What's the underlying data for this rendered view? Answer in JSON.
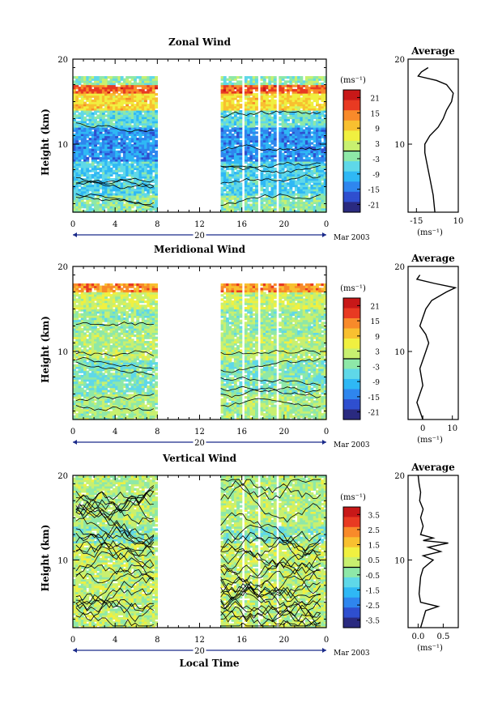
{
  "palette": [
    "#2a2a80",
    "#2f4fcf",
    "#2f86ee",
    "#2fb8f5",
    "#5fd8e8",
    "#8ee8a8",
    "#c8f070",
    "#f0f040",
    "#f8c030",
    "#f88a2a",
    "#e83a22",
    "#c81818"
  ],
  "date_label": "Mar 2003",
  "day_label": "20",
  "xlabel": "Local Time",
  "ylabel": "Height (km)",
  "cbar_unit": "(ms⁻¹)",
  "profile_unit": "(ms⁻¹)",
  "profile_title": "Average",
  "chart_data": [
    {
      "type": "heatmap",
      "title": "Zonal Wind",
      "xlabel": "Local Time",
      "ylabel": "Height (km)",
      "x_ticks": [
        "0",
        "4",
        "8",
        "12",
        "16",
        "20",
        "0"
      ],
      "y_ticks": [
        "10",
        "20"
      ],
      "xlim": [
        0,
        24
      ],
      "ylim": [
        2,
        20
      ],
      "data_gaps_hours": [
        [
          8,
          13.8
        ]
      ],
      "colorbar": {
        "unit": "(ms⁻¹)",
        "ticks": [
          "21",
          "15",
          "9",
          "3",
          "-3",
          "-9",
          "-15",
          "-21"
        ],
        "range": [
          -24,
          24
        ]
      },
      "regimes": [
        {
          "h_from": 2,
          "h_to": 4,
          "value": -2
        },
        {
          "h_from": 4,
          "h_to": 8,
          "value": -7
        },
        {
          "h_from": 8,
          "h_to": 12,
          "value": -13
        },
        {
          "h_from": 12,
          "h_to": 14,
          "value": -5
        },
        {
          "h_from": 14,
          "h_to": 16,
          "value": 8
        },
        {
          "h_from": 16,
          "h_to": 17,
          "value": 16
        },
        {
          "h_from": 17,
          "h_to": 18,
          "value": -2
        }
      ],
      "profile": {
        "title": "Average",
        "unit": "(ms⁻¹)",
        "xlim": [
          -20,
          10
        ],
        "x_ticks": [
          "-15",
          "10"
        ],
        "y_ticks": [
          "10",
          "20"
        ],
        "heights": [
          2,
          4,
          6,
          8,
          9,
          10,
          11,
          12,
          13,
          14,
          15,
          16,
          17,
          17.5,
          18,
          18.5,
          19
        ],
        "values": [
          -4,
          -5,
          -7,
          -9,
          -10,
          -10,
          -7,
          -2,
          1,
          3,
          6,
          7,
          3,
          -3,
          -14,
          -12,
          -8
        ]
      }
    },
    {
      "type": "heatmap",
      "title": "Meridional Wind",
      "xlabel": "Local Time",
      "ylabel": "Height (km)",
      "x_ticks": [
        "0",
        "4",
        "8",
        "12",
        "16",
        "20",
        "0"
      ],
      "y_ticks": [
        "10",
        "20"
      ],
      "xlim": [
        0,
        24
      ],
      "ylim": [
        2,
        20
      ],
      "data_gaps_hours": [
        [
          8,
          13.8
        ]
      ],
      "colorbar": {
        "unit": "(ms⁻¹)",
        "ticks": [
          "21",
          "15",
          "9",
          "3",
          "-3",
          "-9",
          "-15",
          "-21"
        ],
        "range": [
          -24,
          24
        ]
      },
      "regimes": [
        {
          "h_from": 2,
          "h_to": 5,
          "value": 0
        },
        {
          "h_from": 5,
          "h_to": 9,
          "value": -3
        },
        {
          "h_from": 9,
          "h_to": 12,
          "value": 1
        },
        {
          "h_from": 12,
          "h_to": 15,
          "value": -1
        },
        {
          "h_from": 15,
          "h_to": 17,
          "value": 3
        },
        {
          "h_from": 17,
          "h_to": 18,
          "value": 13
        }
      ],
      "profile": {
        "title": "Average",
        "unit": "(ms⁻¹)",
        "xlim": [
          -5,
          12
        ],
        "x_ticks": [
          "0",
          "10"
        ],
        "y_ticks": [
          "10",
          "20"
        ],
        "heights": [
          2,
          3,
          4,
          6,
          8,
          10,
          11,
          12,
          13,
          14,
          15,
          16,
          17,
          17.5,
          18,
          18.5,
          19
        ],
        "values": [
          0,
          -1,
          -2,
          0,
          -1,
          1,
          2,
          1,
          -1,
          0,
          1,
          3,
          8,
          11,
          4,
          -2,
          -1
        ]
      }
    },
    {
      "type": "heatmap",
      "title": "Vertical Wind",
      "xlabel": "Local Time",
      "ylabel": "Height (km)",
      "x_ticks": [
        "0",
        "4",
        "8",
        "12",
        "16",
        "20",
        "0"
      ],
      "y_ticks": [
        "10",
        "20"
      ],
      "xlim": [
        0,
        24
      ],
      "ylim": [
        2,
        20
      ],
      "data_gaps_hours": [
        [
          8,
          13.8
        ]
      ],
      "colorbar": {
        "unit": "(ms⁻¹)",
        "ticks": [
          "3.5",
          "2.5",
          "1.5",
          "0.5",
          "-0.5",
          "-1.5",
          "-2.5",
          "-3.5"
        ],
        "range": [
          -4,
          4
        ]
      },
      "regimes": [
        {
          "h_from": 2,
          "h_to": 12,
          "value": 0.3
        },
        {
          "h_from": 12,
          "h_to": 14,
          "value": -0.4
        },
        {
          "h_from": 14,
          "h_to": 20,
          "value": 0.1
        }
      ],
      "profile": {
        "title": "Average",
        "unit": "(ms⁻¹)",
        "xlim": [
          -0.2,
          0.8
        ],
        "x_ticks": [
          "0.0",
          "0.5"
        ],
        "y_ticks": [
          "10",
          "20"
        ],
        "heights": [
          2,
          3,
          4,
          4.5,
          5,
          6,
          8,
          9,
          10,
          10.5,
          11,
          11.5,
          12,
          12.3,
          12.6,
          13,
          14,
          15,
          16,
          17,
          18,
          19,
          20
        ],
        "values": [
          0.05,
          0.1,
          0.15,
          0.4,
          0.05,
          0.02,
          0.05,
          0.1,
          0.3,
          0.1,
          0.45,
          0.2,
          0.6,
          0.1,
          0.3,
          0.05,
          0.1,
          0.05,
          0.1,
          0.03,
          0.05,
          0.02,
          0.0
        ]
      }
    }
  ]
}
